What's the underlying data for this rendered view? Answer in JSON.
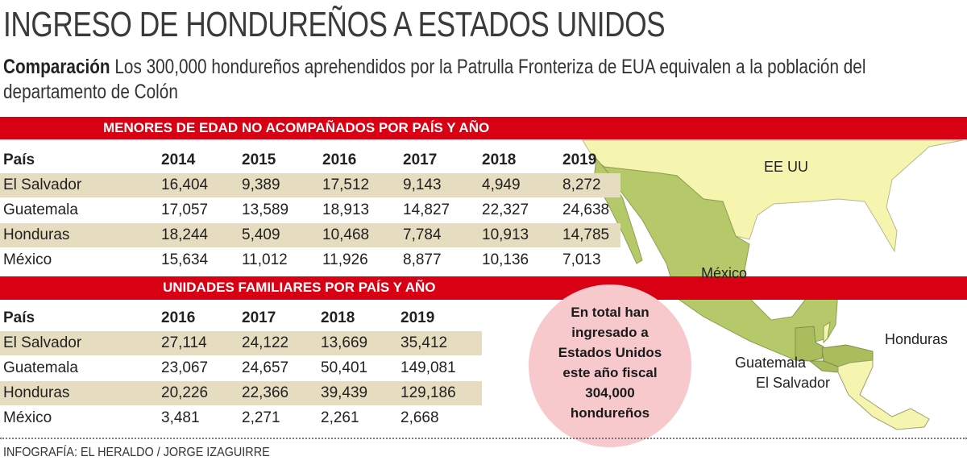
{
  "title": "INGRESO DE HONDUREÑOS A ESTADOS UNIDOS",
  "subtitle": {
    "lead": "Comparación",
    "text": " Los 300,000 hondureños aprehendidos por la Patrulla Fronteriza de EUA equivalen a la población del departamento de Colón"
  },
  "callout": {
    "lines": [
      "En total han",
      "ingresado a",
      "Estados Unidos",
      "este año fiscal",
      "304,000",
      "hondureños"
    ]
  },
  "map": {
    "labels": {
      "usa": "EE UU",
      "mexico": "México",
      "honduras": "Honduras",
      "guatemala": "Guatemala",
      "el_salvador": "El Salvador"
    },
    "colors": {
      "highlight": "#b5c86a",
      "other": "#f5f5b0",
      "band": "#d90013",
      "row_shade": "#e6dcc0",
      "callout": "#f8c9cc"
    }
  },
  "credit": "INFOGRAFÍA: EL HERALDO / JORGE IZAGUIRRE",
  "chart_data": [
    {
      "type": "table",
      "title": "MENORES DE EDAD NO ACOMPAÑADOS POR PAÍS Y AÑO",
      "columns": [
        "País",
        "2014",
        "2015",
        "2016",
        "2017",
        "2018",
        "2019"
      ],
      "rows": [
        [
          "El Salvador",
          "16,404",
          "9,389",
          "17,512",
          "9,143",
          "4,949",
          "8,272"
        ],
        [
          "Guatemala",
          "17,057",
          "13,589",
          "18,913",
          "14,827",
          "22,327",
          "24,638"
        ],
        [
          "Honduras",
          "18,244",
          "5,409",
          "10,468",
          "7,784",
          "10,913",
          "14,785"
        ],
        [
          "México",
          "15,634",
          "11,012",
          "11,926",
          "8,877",
          "10,136",
          "7,013"
        ]
      ]
    },
    {
      "type": "table",
      "title": "UNIDADES FAMILIARES POR PAÍS Y AÑO",
      "columns": [
        "País",
        "2016",
        "2017",
        "2018",
        "2019"
      ],
      "rows": [
        [
          "El Salvador",
          "27,114",
          "24,122",
          "13,669",
          "35,412"
        ],
        [
          "Guatemala",
          "23,067",
          "24,657",
          "50,401",
          "149,081"
        ],
        [
          "Honduras",
          "20,226",
          "22,366",
          "39,439",
          "129,186"
        ],
        [
          "México",
          "3,481",
          "2,271",
          "2,261",
          "2,668"
        ]
      ]
    }
  ]
}
